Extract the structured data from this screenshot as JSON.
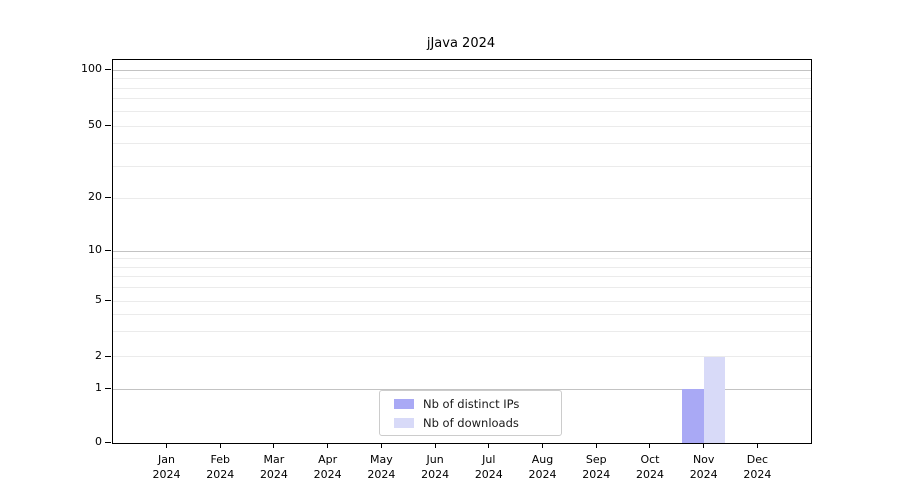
{
  "chart_data": {
    "type": "bar",
    "title": "jJava 2024",
    "categories": [
      {
        "month": "Jan",
        "year": "2024"
      },
      {
        "month": "Feb",
        "year": "2024"
      },
      {
        "month": "Mar",
        "year": "2024"
      },
      {
        "month": "Apr",
        "year": "2024"
      },
      {
        "month": "May",
        "year": "2024"
      },
      {
        "month": "Jun",
        "year": "2024"
      },
      {
        "month": "Jul",
        "year": "2024"
      },
      {
        "month": "Aug",
        "year": "2024"
      },
      {
        "month": "Sep",
        "year": "2024"
      },
      {
        "month": "Oct",
        "year": "2024"
      },
      {
        "month": "Nov",
        "year": "2024"
      },
      {
        "month": "Dec",
        "year": "2024"
      }
    ],
    "series": [
      {
        "name": "Nb of distinct IPs",
        "color": "#a9a9f5",
        "values": [
          0,
          0,
          0,
          0,
          0,
          0,
          0,
          0,
          0,
          0,
          1,
          0
        ]
      },
      {
        "name": "Nb of downloads",
        "color": "#d8daf8",
        "values": [
          0,
          0,
          0,
          0,
          0,
          0,
          0,
          0,
          0,
          0,
          2,
          0
        ]
      }
    ],
    "y_axis": {
      "scale": "symlog",
      "range": [
        0,
        100
      ],
      "tick_values": [
        0,
        1,
        2,
        5,
        10,
        20,
        50,
        100
      ],
      "tick_labels": [
        "0",
        "1",
        "2",
        "5",
        "10",
        "20",
        "50",
        "100"
      ],
      "major_gridlines": [
        1,
        10,
        100
      ],
      "minor_gridlines": [
        2,
        3,
        4,
        5,
        6,
        7,
        8,
        9,
        20,
        30,
        40,
        50,
        60,
        70,
        80,
        90
      ]
    },
    "legend": {
      "position": "lower center",
      "entries": [
        {
          "label": "Nb of distinct IPs",
          "color": "#a9a9f5"
        },
        {
          "label": "Nb of downloads",
          "color": "#d8daf8"
        }
      ]
    }
  },
  "colors": {
    "major_grid": "#c3c3c3",
    "minor_grid": "#ebebeb",
    "spine": "#000000",
    "background": "#ffffff"
  }
}
